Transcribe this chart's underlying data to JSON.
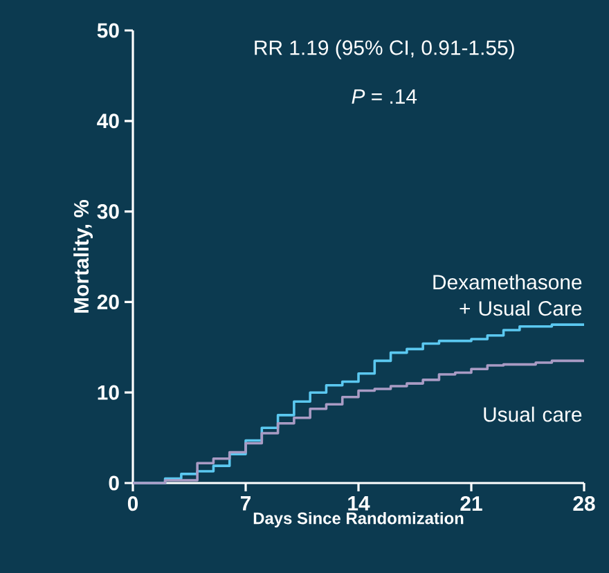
{
  "chart_data": {
    "type": "step",
    "xlabel": "Days Since Randomization",
    "ylabel": "Mortality, %",
    "annotations": [
      "RR 1.19 (95% CI, 0.91-1.55)",
      "*P* = .14"
    ],
    "xlim": [
      0,
      28
    ],
    "xticks": [
      0,
      7,
      14,
      21,
      28
    ],
    "ylim": [
      0,
      50
    ],
    "yticks": [
      0,
      10,
      20,
      30,
      40,
      50
    ],
    "grid": false,
    "legend": false,
    "marker": "none",
    "line_style": "solid",
    "series": [
      {
        "name": "Dexamethasone + Usual Care",
        "color": "#5bc8f0",
        "x": [
          0,
          2,
          3,
          4,
          5,
          6,
          7,
          8,
          9,
          10,
          11,
          12,
          13,
          14,
          15,
          16,
          17,
          18,
          19,
          21,
          22,
          23,
          24,
          26,
          28
        ],
        "values": [
          0,
          0.5,
          1.0,
          1.3,
          1.9,
          3.2,
          4.7,
          6.1,
          7.5,
          9.0,
          10.0,
          10.8,
          11.2,
          12.1,
          13.5,
          14.4,
          14.8,
          15.4,
          15.7,
          15.9,
          16.3,
          16.9,
          17.3,
          17.5,
          17.5
        ]
      },
      {
        "name": "Usual care",
        "color": "#a99bc4",
        "x": [
          0,
          2,
          4,
          5,
          6,
          7,
          8,
          9,
          10,
          11,
          12,
          13,
          14,
          15,
          16,
          17,
          18,
          19,
          20,
          21,
          22,
          23,
          25,
          26,
          28
        ],
        "values": [
          0,
          0.3,
          2.2,
          2.7,
          3.4,
          4.4,
          5.5,
          6.6,
          7.2,
          8.2,
          8.7,
          9.5,
          10.2,
          10.4,
          10.7,
          11.0,
          11.4,
          12.0,
          12.2,
          12.6,
          13.0,
          13.1,
          13.3,
          13.5,
          13.5
        ]
      }
    ]
  }
}
